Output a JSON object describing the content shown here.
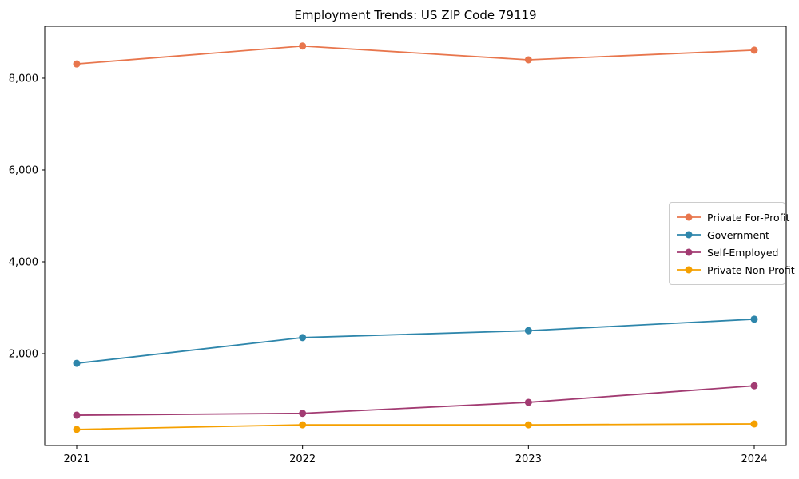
{
  "chart_data": {
    "type": "line",
    "title": "Employment Trends: US ZIP Code 79119",
    "x": [
      "2021",
      "2022",
      "2023",
      "2024"
    ],
    "series": [
      {
        "name": "Private For-Profit",
        "color": "#e8764d",
        "values": [
          8310,
          8700,
          8400,
          8610
        ]
      },
      {
        "name": "Government",
        "color": "#2e86ab",
        "values": [
          1790,
          2350,
          2500,
          2750
        ]
      },
      {
        "name": "Self-Employed",
        "color": "#a23b72",
        "values": [
          660,
          700,
          940,
          1300
        ]
      },
      {
        "name": "Private Non-Profit",
        "color": "#f5a000",
        "values": [
          350,
          450,
          450,
          470
        ]
      }
    ],
    "xlabel": "",
    "ylabel": "",
    "ylim": [
      0,
      9130
    ],
    "yticks": [
      2000,
      4000,
      6000,
      8000
    ],
    "ytick_labels": [
      "2,000",
      "4,000",
      "6,000",
      "8,000"
    ],
    "xtick_labels": [
      "2021",
      "2022",
      "2023",
      "2024"
    ],
    "legend_position": "center-right",
    "grid": false,
    "marker": "circle",
    "axis_color": "#000000"
  }
}
